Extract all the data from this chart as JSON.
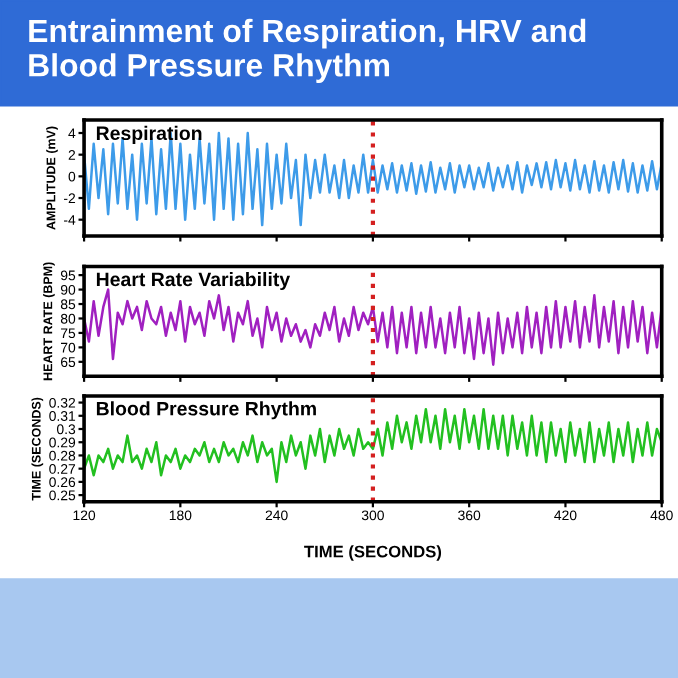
{
  "chart_data": [
    {
      "type": "line",
      "title": "Respiration",
      "ylabel": "AMPLITUDE (mV)",
      "annotations": [
        "Entrainment of Respiration, HRV and Blood Pressure Rhythm"
      ],
      "tick_labels": "y",
      "x": [
        120,
        123,
        126,
        129,
        132,
        135,
        138,
        141,
        144,
        147,
        150,
        153,
        156,
        159,
        162,
        165,
        168,
        171,
        174,
        177,
        180,
        183,
        186,
        189,
        192,
        195,
        198,
        201,
        204,
        207,
        210,
        213,
        216,
        219,
        222,
        225,
        228,
        231,
        234,
        237,
        240,
        243,
        246,
        249,
        252,
        255,
        258,
        261,
        264,
        267,
        270,
        273,
        276,
        279,
        282,
        285,
        288,
        291,
        294,
        297,
        300,
        303,
        306,
        309,
        312,
        315,
        318,
        321,
        324,
        327,
        330,
        333,
        336,
        339,
        342,
        345,
        348,
        351,
        354,
        357,
        360,
        363,
        366,
        369,
        372,
        375,
        378,
        381,
        384,
        387,
        390,
        393,
        396,
        399,
        402,
        405,
        408,
        411,
        414,
        417,
        420,
        423,
        426,
        429,
        432,
        435,
        438,
        441,
        444,
        447,
        450,
        453,
        456,
        459,
        462,
        465,
        468,
        471,
        474,
        477,
        480
      ],
      "series": [
        {
          "color": "#3d9be9",
          "values": [
            2,
            -3,
            3,
            -2,
            2.5,
            -3.5,
            3,
            -2.5,
            3.5,
            -3,
            2,
            -4,
            3,
            -2.5,
            3.5,
            -3.5,
            2.5,
            -3,
            4,
            -3,
            3,
            -4,
            2,
            -3,
            3.5,
            -2.5,
            3,
            -4,
            4,
            -3,
            3.5,
            -4,
            3,
            -3.5,
            4,
            -3,
            2.5,
            -4.5,
            3,
            -3,
            2,
            -2.5,
            3,
            -2,
            1.5,
            -4.5,
            2,
            -2,
            1.5,
            -1.5,
            2,
            -1.5,
            1,
            -2,
            1.5,
            -2,
            1,
            -1.5,
            2,
            -1.5,
            1.5,
            -1.5,
            1,
            -1.2,
            1.2,
            -1.5,
            1,
            -1.3,
            1.2,
            -1.6,
            1,
            -1.4,
            1.3,
            -1.5,
            0.8,
            -1.2,
            1.2,
            -1.5,
            1,
            -1,
            1,
            -1.2,
            0.8,
            -1,
            1.2,
            -1.3,
            0.8,
            -1,
            1,
            -1.2,
            1.3,
            -1.5,
            1,
            -0.8,
            1.2,
            -1,
            1.3,
            -1.2,
            1.5,
            -1,
            1.2,
            -1.3,
            1.5,
            -1.2,
            1,
            -1.5,
            1.4,
            -1.3,
            1,
            -1.5,
            1.3,
            -1.2,
            1.5,
            -1.4,
            1.2,
            -1.5,
            1,
            -1.3,
            1.4,
            -1.2,
            1.2
          ]
        }
      ],
      "xlim": [
        120,
        480
      ],
      "xticks": [
        120,
        180,
        240,
        300,
        360,
        420,
        480
      ],
      "ylim": [
        -5.5,
        5.2
      ],
      "yticks": [
        -4,
        -2,
        0,
        2,
        4
      ],
      "ref_lines": [
        {
          "axis": "x",
          "value": 300,
          "color": "#d42020",
          "line_style": "dotted"
        }
      ]
    },
    {
      "type": "line",
      "title": "Heart Rate Variability",
      "ylabel": "HEART RATE (BPM)",
      "tick_labels": "y",
      "x": [
        120,
        123,
        126,
        129,
        132,
        135,
        138,
        141,
        144,
        147,
        150,
        153,
        156,
        159,
        162,
        165,
        168,
        171,
        174,
        177,
        180,
        183,
        186,
        189,
        192,
        195,
        198,
        201,
        204,
        207,
        210,
        213,
        216,
        219,
        222,
        225,
        228,
        231,
        234,
        237,
        240,
        243,
        246,
        249,
        252,
        255,
        258,
        261,
        264,
        267,
        270,
        273,
        276,
        279,
        282,
        285,
        288,
        291,
        294,
        297,
        300,
        303,
        306,
        309,
        312,
        315,
        318,
        321,
        324,
        327,
        330,
        333,
        336,
        339,
        342,
        345,
        348,
        351,
        354,
        357,
        360,
        363,
        366,
        369,
        372,
        375,
        378,
        381,
        384,
        387,
        390,
        393,
        396,
        399,
        402,
        405,
        408,
        411,
        414,
        417,
        420,
        423,
        426,
        429,
        432,
        435,
        438,
        441,
        444,
        447,
        450,
        453,
        456,
        459,
        462,
        465,
        468,
        471,
        474,
        477,
        480
      ],
      "series": [
        {
          "color": "#a020c0",
          "values": [
            80,
            72,
            86,
            74,
            84,
            90,
            66,
            82,
            78,
            86,
            80,
            84,
            76,
            86,
            80,
            78,
            84,
            74,
            82,
            76,
            86,
            72,
            84,
            78,
            82,
            74,
            86,
            80,
            88,
            76,
            84,
            72,
            82,
            78,
            86,
            74,
            80,
            70,
            84,
            76,
            82,
            72,
            80,
            74,
            78,
            72,
            76,
            70,
            78,
            74,
            82,
            76,
            84,
            72,
            80,
            74,
            84,
            76,
            82,
            78,
            84,
            72,
            82,
            70,
            84,
            68,
            82,
            70,
            84,
            68,
            82,
            70,
            84,
            70,
            80,
            68,
            82,
            70,
            84,
            68,
            80,
            66,
            82,
            68,
            80,
            64,
            82,
            68,
            80,
            70,
            82,
            68,
            84,
            70,
            82,
            68,
            84,
            70,
            86,
            70,
            84,
            72,
            86,
            70,
            84,
            72,
            88,
            70,
            84,
            72,
            86,
            68,
            84,
            70,
            86,
            72,
            84,
            68,
            82,
            70,
            84
          ]
        }
      ],
      "xlim": [
        120,
        480
      ],
      "xticks": [
        120,
        180,
        240,
        300,
        360,
        420,
        480
      ],
      "ylim": [
        60,
        98
      ],
      "yticks": [
        65,
        70,
        75,
        80,
        85,
        90,
        95
      ],
      "ref_lines": [
        {
          "axis": "x",
          "value": 300,
          "color": "#d42020",
          "line_style": "dotted"
        }
      ]
    },
    {
      "type": "line",
      "title": "Blood Pressure Rhythm",
      "ylabel": "TIME (SECONDS)",
      "xlabel": "TIME (SECONDS)",
      "x": [
        120,
        123,
        126,
        129,
        132,
        135,
        138,
        141,
        144,
        147,
        150,
        153,
        156,
        159,
        162,
        165,
        168,
        171,
        174,
        177,
        180,
        183,
        186,
        189,
        192,
        195,
        198,
        201,
        204,
        207,
        210,
        213,
        216,
        219,
        222,
        225,
        228,
        231,
        234,
        237,
        240,
        243,
        246,
        249,
        252,
        255,
        258,
        261,
        264,
        267,
        270,
        273,
        276,
        279,
        282,
        285,
        288,
        291,
        294,
        297,
        300,
        303,
        306,
        309,
        312,
        315,
        318,
        321,
        324,
        327,
        330,
        333,
        336,
        339,
        342,
        345,
        348,
        351,
        354,
        357,
        360,
        363,
        366,
        369,
        372,
        375,
        378,
        381,
        384,
        387,
        390,
        393,
        396,
        399,
        402,
        405,
        408,
        411,
        414,
        417,
        420,
        423,
        426,
        429,
        432,
        435,
        438,
        441,
        444,
        447,
        450,
        453,
        456,
        459,
        462,
        465,
        468,
        471,
        474,
        477,
        480
      ],
      "series": [
        {
          "color": "#22c020",
          "values": [
            0.27,
            0.28,
            0.265,
            0.28,
            0.275,
            0.285,
            0.27,
            0.28,
            0.275,
            0.295,
            0.275,
            0.28,
            0.27,
            0.285,
            0.275,
            0.29,
            0.265,
            0.28,
            0.275,
            0.285,
            0.27,
            0.28,
            0.275,
            0.285,
            0.28,
            0.29,
            0.275,
            0.285,
            0.275,
            0.29,
            0.28,
            0.285,
            0.275,
            0.29,
            0.28,
            0.295,
            0.275,
            0.29,
            0.28,
            0.285,
            0.26,
            0.29,
            0.275,
            0.295,
            0.28,
            0.29,
            0.27,
            0.295,
            0.28,
            0.3,
            0.275,
            0.295,
            0.28,
            0.3,
            0.285,
            0.295,
            0.28,
            0.3,
            0.285,
            0.29,
            0.285,
            0.3,
            0.28,
            0.305,
            0.285,
            0.31,
            0.29,
            0.305,
            0.285,
            0.31,
            0.29,
            0.315,
            0.29,
            0.31,
            0.285,
            0.315,
            0.29,
            0.31,
            0.285,
            0.315,
            0.29,
            0.31,
            0.285,
            0.315,
            0.285,
            0.31,
            0.285,
            0.31,
            0.28,
            0.31,
            0.285,
            0.305,
            0.28,
            0.31,
            0.28,
            0.305,
            0.275,
            0.305,
            0.28,
            0.3,
            0.275,
            0.305,
            0.28,
            0.3,
            0.275,
            0.305,
            0.275,
            0.3,
            0.28,
            0.305,
            0.275,
            0.3,
            0.28,
            0.305,
            0.275,
            0.3,
            0.28,
            0.305,
            0.28,
            0.3,
            0.29
          ]
        }
      ],
      "xlim": [
        120,
        480
      ],
      "xticks": [
        120,
        180,
        240,
        300,
        360,
        420,
        480
      ],
      "ylim": [
        0.245,
        0.325
      ],
      "yticks": [
        0.25,
        0.26,
        0.27,
        0.28,
        0.29,
        0.3,
        0.31,
        0.32
      ],
      "ref_lines": [
        {
          "axis": "x",
          "value": 300,
          "color": "#d42020",
          "line_style": "dotted"
        }
      ]
    }
  ]
}
